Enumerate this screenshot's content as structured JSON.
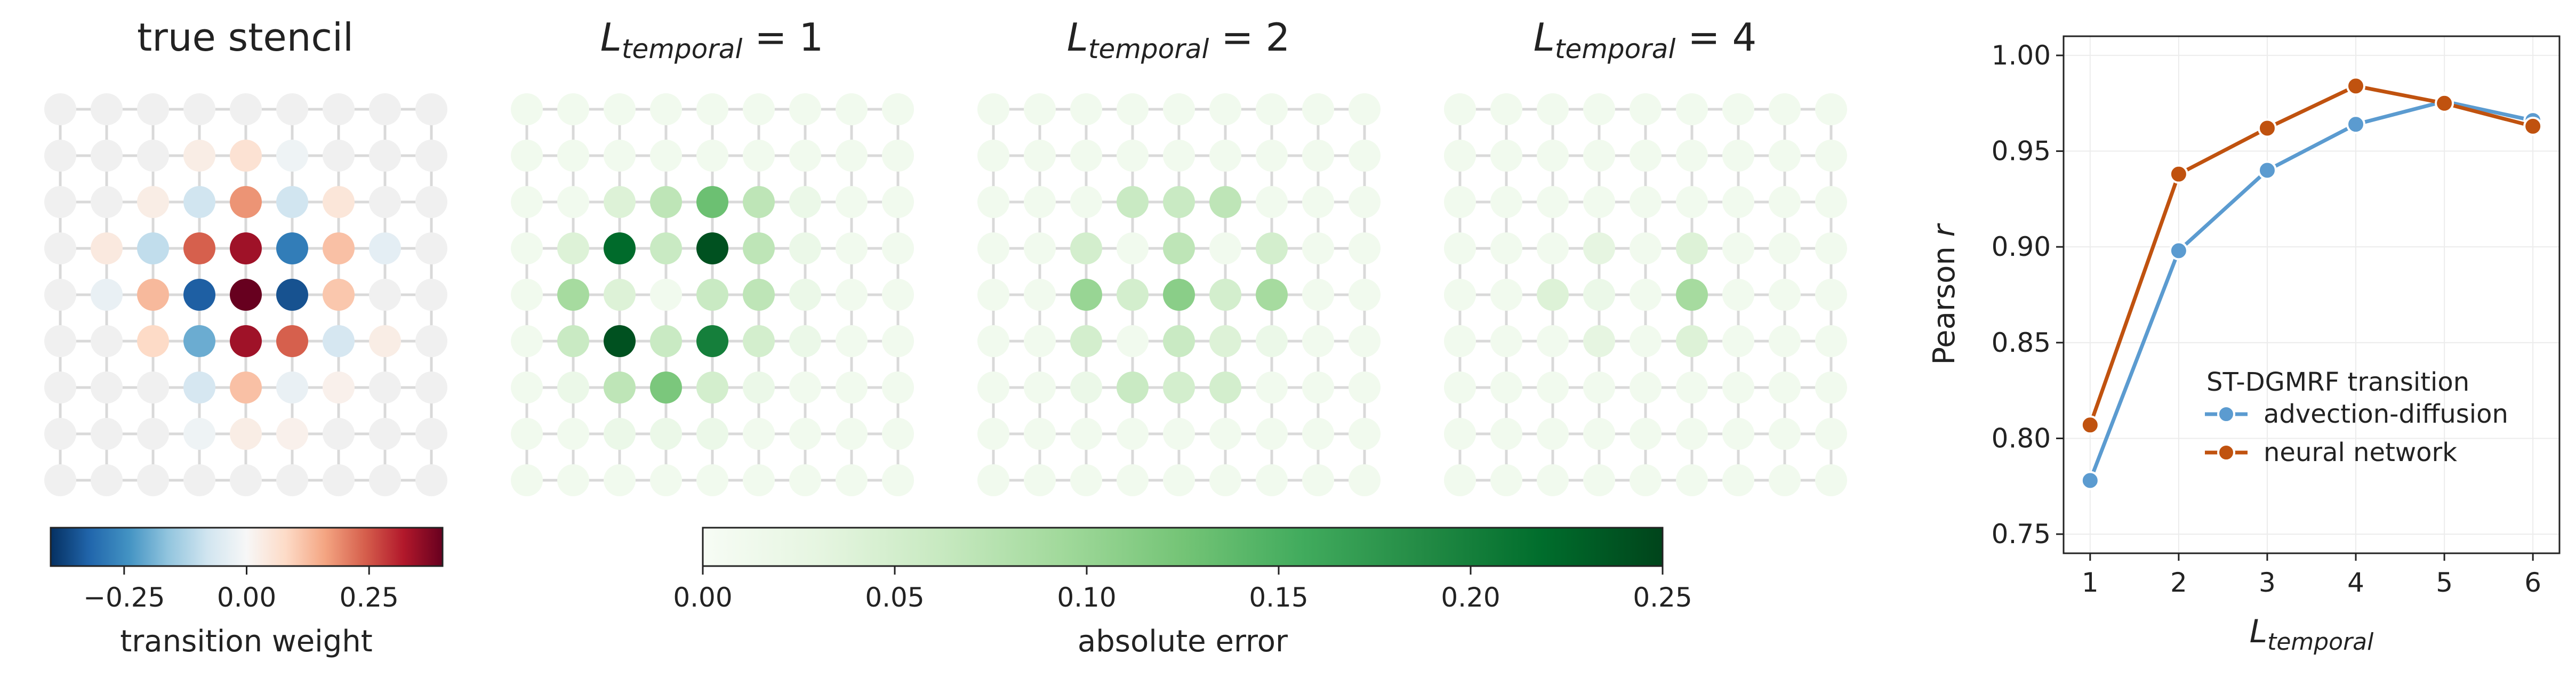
{
  "panels": [
    {
      "title_text": "true stencil",
      "kind": "stencil"
    },
    {
      "title_main": "L",
      "title_sub": "temporal",
      "title_rest": " = 1",
      "kind": "error"
    },
    {
      "title_main": "L",
      "title_sub": "temporal",
      "title_rest": " = 2",
      "kind": "error"
    },
    {
      "title_main": "L",
      "title_sub": "temporal",
      "title_rest": " = 4",
      "kind": "error"
    }
  ],
  "colorbars": {
    "transition": {
      "label": "transition weight",
      "range": [
        -0.4,
        0.4
      ],
      "ticks": [
        -0.25,
        0.0,
        0.25
      ],
      "tick_labels": [
        "−0.25",
        "0.00",
        "0.25"
      ],
      "colormap": "RdBu_r"
    },
    "error": {
      "label": "absolute error",
      "range": [
        0.0,
        0.25
      ],
      "ticks": [
        0.0,
        0.05,
        0.1,
        0.15,
        0.2,
        0.25
      ],
      "tick_labels": [
        "0.00",
        "0.05",
        "0.10",
        "0.15",
        "0.20",
        "0.25"
      ],
      "colormap": "Greens"
    }
  },
  "chart_data": [
    {
      "type": "heatmap",
      "title": "true stencil",
      "grid_size": [
        9,
        9
      ],
      "values": [
        [
          0,
          0,
          0,
          0,
          0,
          0,
          0,
          0,
          0
        ],
        [
          0,
          0,
          0,
          0.03,
          0.06,
          -0.02,
          0,
          0,
          0
        ],
        [
          0,
          0,
          0.03,
          -0.08,
          0.18,
          -0.08,
          0.05,
          0,
          0
        ],
        [
          0,
          0.04,
          -0.1,
          0.24,
          0.34,
          -0.28,
          0.12,
          -0.04,
          0
        ],
        [
          0,
          -0.03,
          0.13,
          -0.33,
          0.4,
          -0.35,
          0.11,
          0,
          0
        ],
        [
          0,
          0,
          0.08,
          -0.2,
          0.34,
          0.24,
          -0.07,
          0.03,
          0
        ],
        [
          0,
          0,
          0,
          -0.07,
          0.12,
          -0.03,
          0.02,
          0,
          0
        ],
        [
          0,
          0,
          0,
          -0.02,
          0.03,
          0.02,
          0,
          0,
          0
        ],
        [
          0,
          0,
          0,
          0,
          0,
          0,
          0,
          0,
          0
        ]
      ]
    },
    {
      "type": "heatmap",
      "title": "L_temporal = 1",
      "grid_size": [
        9,
        9
      ],
      "values": [
        [
          0.01,
          0.01,
          0.01,
          0.01,
          0.01,
          0.01,
          0.01,
          0.01,
          0.01
        ],
        [
          0.01,
          0.01,
          0.01,
          0.01,
          0.01,
          0.01,
          0.01,
          0.01,
          0.01
        ],
        [
          0.01,
          0.01,
          0.04,
          0.07,
          0.13,
          0.07,
          0.02,
          0.01,
          0.01
        ],
        [
          0.01,
          0.04,
          0.22,
          0.06,
          0.24,
          0.07,
          0.02,
          0.01,
          0.01
        ],
        [
          0.01,
          0.09,
          0.04,
          0.01,
          0.06,
          0.07,
          0.02,
          0.01,
          0.01
        ],
        [
          0.01,
          0.06,
          0.24,
          0.06,
          0.2,
          0.05,
          0.02,
          0.01,
          0.01
        ],
        [
          0.01,
          0.02,
          0.07,
          0.12,
          0.05,
          0.02,
          0.01,
          0.01,
          0.01
        ],
        [
          0.01,
          0.01,
          0.02,
          0.02,
          0.02,
          0.01,
          0.01,
          0.01,
          0.01
        ],
        [
          0.01,
          0.01,
          0.01,
          0.01,
          0.01,
          0.01,
          0.01,
          0.01,
          0.01
        ]
      ]
    },
    {
      "type": "heatmap",
      "title": "L_temporal = 2",
      "grid_size": [
        9,
        9
      ],
      "values": [
        [
          0.01,
          0.01,
          0.01,
          0.01,
          0.01,
          0.01,
          0.01,
          0.01,
          0.01
        ],
        [
          0.01,
          0.01,
          0.01,
          0.01,
          0.01,
          0.01,
          0.01,
          0.01,
          0.01
        ],
        [
          0.01,
          0.01,
          0.01,
          0.06,
          0.06,
          0.07,
          0.01,
          0.01,
          0.01
        ],
        [
          0.01,
          0.01,
          0.05,
          0.01,
          0.07,
          0.01,
          0.05,
          0.01,
          0.01
        ],
        [
          0.01,
          0.01,
          0.1,
          0.05,
          0.11,
          0.05,
          0.09,
          0.01,
          0.01
        ],
        [
          0.01,
          0.01,
          0.05,
          0.01,
          0.06,
          0.04,
          0.02,
          0.01,
          0.01
        ],
        [
          0.01,
          0.01,
          0.02,
          0.06,
          0.05,
          0.05,
          0.01,
          0.01,
          0.01
        ],
        [
          0.01,
          0.01,
          0.01,
          0.01,
          0.01,
          0.01,
          0.01,
          0.01,
          0.01
        ],
        [
          0.01,
          0.01,
          0.01,
          0.01,
          0.01,
          0.01,
          0.01,
          0.01,
          0.01
        ]
      ]
    },
    {
      "type": "heatmap",
      "title": "L_temporal = 4",
      "grid_size": [
        9,
        9
      ],
      "values": [
        [
          0.01,
          0.01,
          0.01,
          0.01,
          0.01,
          0.01,
          0.01,
          0.01,
          0.01
        ],
        [
          0.01,
          0.01,
          0.01,
          0.01,
          0.01,
          0.01,
          0.01,
          0.01,
          0.01
        ],
        [
          0.01,
          0.01,
          0.01,
          0.01,
          0.01,
          0.01,
          0.01,
          0.01,
          0.01
        ],
        [
          0.01,
          0.01,
          0.01,
          0.03,
          0.01,
          0.04,
          0.01,
          0.01,
          0.01
        ],
        [
          0.01,
          0.01,
          0.04,
          0.02,
          0.01,
          0.09,
          0.01,
          0.01,
          0.01
        ],
        [
          0.01,
          0.01,
          0.01,
          0.03,
          0.01,
          0.04,
          0.01,
          0.01,
          0.01
        ],
        [
          0.01,
          0.01,
          0.01,
          0.01,
          0.01,
          0.01,
          0.01,
          0.01,
          0.01
        ],
        [
          0.01,
          0.01,
          0.01,
          0.01,
          0.01,
          0.01,
          0.01,
          0.01,
          0.01
        ],
        [
          0.01,
          0.01,
          0.01,
          0.01,
          0.01,
          0.01,
          0.01,
          0.01,
          0.01
        ]
      ]
    },
    {
      "type": "line",
      "x": [
        1,
        2,
        3,
        4,
        5,
        6
      ],
      "xlabel_main": "L",
      "xlabel_sub": "temporal",
      "ylabel_main": "Pearson ",
      "ylabel_italic": "r",
      "xlim": [
        0.7,
        6.3
      ],
      "ylim": [
        0.74,
        1.01
      ],
      "xticks": [
        "1",
        "2",
        "3",
        "4",
        "5",
        "6"
      ],
      "yticks": [
        "0.75",
        "0.80",
        "0.85",
        "0.90",
        "0.95",
        "1.00"
      ],
      "ytick_values": [
        0.75,
        0.8,
        0.85,
        0.9,
        0.95,
        1.0
      ],
      "grid": true,
      "legend_title": "ST-DGMRF transition",
      "legend_position": "lower-right",
      "series": [
        {
          "name": "advection-diffusion",
          "color": "#5b9bd0",
          "values": [
            0.778,
            0.898,
            0.94,
            0.964,
            0.976,
            0.966
          ]
        },
        {
          "name": "neural network",
          "color": "#c0520f",
          "values": [
            0.807,
            0.938,
            0.962,
            0.984,
            0.975,
            0.963
          ]
        }
      ]
    }
  ]
}
